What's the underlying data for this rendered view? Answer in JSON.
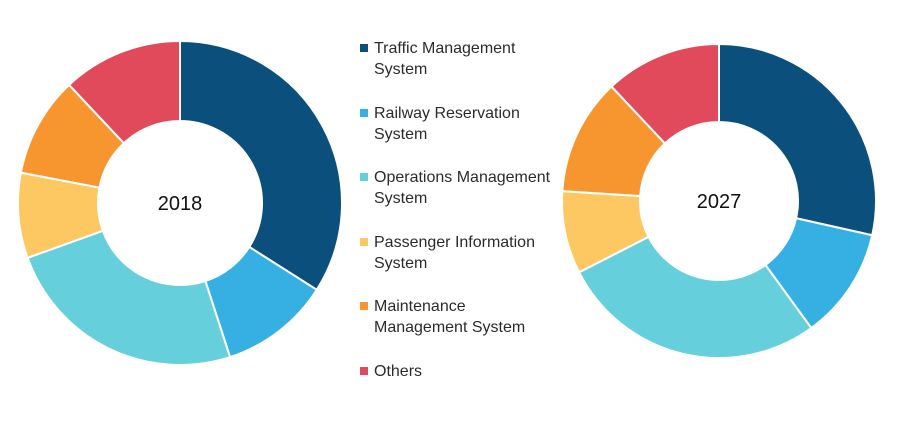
{
  "colors": {
    "traffic": "#0b4f7c",
    "railway": "#36b0e2",
    "operations": "#65d0dc",
    "passenger": "#fdc862",
    "maintenance": "#f7962f",
    "others": "#e14a5b"
  },
  "legend": [
    {
      "label": "Traffic Management\nSystem",
      "color_key": "traffic"
    },
    {
      "label": "Railway Reservation\nSystem",
      "color_key": "railway"
    },
    {
      "label": "Operations Management\nSystem",
      "color_key": "operations"
    },
    {
      "label": "Passenger Information\nSystem",
      "color_key": "passenger"
    },
    {
      "label": "Maintenance\nManagement System",
      "color_key": "maintenance"
    },
    {
      "label": "Others",
      "color_key": "others"
    }
  ],
  "chart_data": [
    {
      "type": "pie",
      "variant": "donut",
      "center_label": "2018",
      "categories": [
        "Traffic Management System",
        "Railway Reservation System",
        "Operations Management System",
        "Passenger Information System",
        "Maintenance Management System",
        "Others"
      ],
      "values": [
        34,
        11,
        24.5,
        8.5,
        10,
        12
      ],
      "unit": "%"
    },
    {
      "type": "pie",
      "variant": "donut",
      "center_label": "2027",
      "categories": [
        "Traffic Management System",
        "Railway Reservation System",
        "Operations Management System",
        "Passenger Information System",
        "Maintenance Management System",
        "Others"
      ],
      "values": [
        28.5,
        11.5,
        27.5,
        8.5,
        12,
        12
      ],
      "unit": "%"
    }
  ]
}
